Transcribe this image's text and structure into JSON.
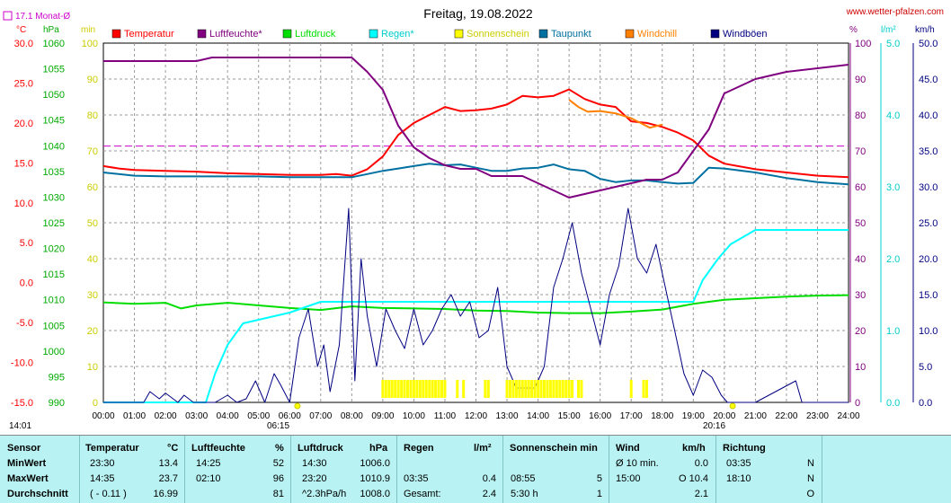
{
  "chart_data": {
    "type": "line",
    "title": "Freitag, 19.08.2022",
    "source": "www.wetter-pfalzen.com",
    "monthly_avg_label": "17.1 Monat-Ø",
    "monthly_avg_value": 17.1,
    "legend": [
      {
        "name": "Temperatur",
        "color": "#ff0000"
      },
      {
        "name": "Luftfeuchte*",
        "color": "#800080"
      },
      {
        "name": "Luftdruck",
        "color": "#00dd00"
      },
      {
        "name": "Regen*",
        "color": "#00ffff"
      },
      {
        "name": "Sonnenschein",
        "color": "#ffff00"
      },
      {
        "name": "Taupunkt",
        "color": "#0070a0"
      },
      {
        "name": "Windchill",
        "color": "#ff8000"
      },
      {
        "name": "Windböen",
        "color": "#000080"
      }
    ],
    "axes": {
      "temp": {
        "unit": "°C",
        "min": -15,
        "max": 30,
        "ticks": [
          "30.0",
          "25.0",
          "20.0",
          "15.0",
          "10.0",
          "5.0",
          "0.0",
          "-5.0",
          "-10.0",
          "-15.0"
        ]
      },
      "pressure": {
        "unit": "hPa",
        "min": 990,
        "max": 1060,
        "ticks": [
          "1060",
          "1055",
          "1050",
          "1045",
          "1040",
          "1035",
          "1030",
          "1025",
          "1020",
          "1015",
          "1010",
          "1005",
          "1000",
          "995",
          "990"
        ]
      },
      "sun": {
        "unit": "min",
        "min": 0,
        "max": 100,
        "ticks": [
          "100",
          "90",
          "80",
          "70",
          "60",
          "50",
          "40",
          "30",
          "20",
          "10",
          "0"
        ]
      },
      "humidity": {
        "unit": "%",
        "min": 0,
        "max": 100,
        "ticks": [
          "100",
          "90",
          "80",
          "70",
          "60",
          "50",
          "40",
          "30",
          "20",
          "10",
          "0"
        ]
      },
      "rain": {
        "unit": "l/m²",
        "min": 0,
        "max": 5,
        "ticks": [
          "5.0",
          "4.0",
          "3.0",
          "2.0",
          "1.0",
          "0.0"
        ]
      },
      "wind": {
        "unit": "km/h",
        "min": 0,
        "max": 50,
        "ticks": [
          "50.0",
          "45.0",
          "40.0",
          "35.0",
          "30.0",
          "25.0",
          "20.0",
          "15.0",
          "10.0",
          "5.0",
          "0.0"
        ]
      },
      "x_ticks": [
        "00:00",
        "01:00",
        "02:00",
        "03:00",
        "04:00",
        "05:00",
        "06:00",
        "07:00",
        "08:00",
        "09:00",
        "10:00",
        "11:00",
        "12:00",
        "13:00",
        "14:00",
        "15:00",
        "16:00",
        "17:00",
        "18:00",
        "19:00",
        "20:00",
        "21:00",
        "22:00",
        "23:00",
        "24:00"
      ],
      "x_range": [
        0,
        24
      ]
    },
    "sunrise": "06:15",
    "sunset": "20:16",
    "footer_left": "14:01",
    "series": [
      {
        "name": "Temperatur",
        "axis": "temp",
        "x": [
          0,
          0.5,
          1,
          2,
          3,
          4,
          5,
          6,
          7,
          7.5,
          8,
          8.5,
          9,
          9.5,
          10,
          10.5,
          11,
          11.5,
          12,
          12.5,
          13,
          13.5,
          14,
          14.5,
          15,
          15.5,
          16,
          16.5,
          17,
          17.5,
          18,
          18.5,
          19,
          19.5,
          20,
          21,
          22,
          23,
          24
        ],
        "y": [
          14.6,
          14.3,
          14.1,
          14.0,
          13.9,
          13.7,
          13.6,
          13.5,
          13.5,
          13.6,
          13.4,
          14.2,
          15.8,
          18.5,
          20.0,
          21.0,
          22.0,
          21.5,
          21.6,
          21.8,
          22.3,
          23.4,
          23.2,
          23.4,
          24.2,
          23.0,
          22.3,
          22.0,
          20.2,
          20.0,
          19.5,
          18.8,
          17.8,
          15.9,
          14.9,
          14.2,
          13.8,
          13.4,
          13.2
        ]
      },
      {
        "name": "Taupunkt",
        "axis": "temp",
        "x": [
          0,
          1,
          2,
          3,
          4,
          5,
          6,
          7,
          8,
          8.5,
          9,
          9.5,
          10,
          10.5,
          11,
          11.5,
          12,
          12.5,
          13,
          13.5,
          14,
          14.5,
          15,
          15.5,
          16,
          16.5,
          17,
          17.5,
          18,
          18.5,
          19,
          19.5,
          20,
          21,
          22,
          23,
          24
        ],
        "y": [
          13.8,
          13.4,
          13.3,
          13.3,
          13.3,
          13.3,
          13.2,
          13.2,
          13.2,
          13.6,
          14.0,
          14.3,
          14.6,
          14.9,
          14.7,
          14.8,
          14.4,
          14.0,
          14.0,
          14.3,
          14.4,
          14.8,
          14.2,
          14.0,
          13.0,
          12.6,
          12.8,
          12.8,
          12.6,
          12.4,
          12.5,
          14.4,
          14.3,
          13.8,
          13.1,
          12.6,
          12.3
        ]
      },
      {
        "name": "Windchill",
        "axis": "temp",
        "x": [
          15.0,
          15.3,
          15.6,
          16.0,
          16.5,
          17.0,
          17.3,
          17.6,
          18.0
        ],
        "y": [
          22.9,
          22.0,
          21.4,
          21.5,
          21.2,
          20.6,
          20.0,
          19.4,
          19.8
        ]
      },
      {
        "name": "Luftfeuchte*",
        "axis": "humidity",
        "x": [
          0,
          1,
          2,
          3,
          3.5,
          4,
          5,
          6,
          7,
          8,
          8.5,
          9,
          9.5,
          10,
          10.5,
          11,
          11.5,
          12,
          12.5,
          13,
          13.5,
          14,
          14.5,
          15,
          15.5,
          16,
          16.5,
          17,
          17.5,
          18,
          18.5,
          19,
          19.5,
          20,
          20.5,
          21,
          22,
          23,
          24
        ],
        "y": [
          95,
          95,
          95,
          95,
          96,
          96,
          96,
          96,
          96,
          96,
          92,
          87,
          77,
          71,
          68,
          66,
          65,
          65,
          63,
          63,
          63,
          61,
          59,
          57,
          58,
          59,
          60,
          61,
          62,
          62,
          64,
          70,
          76,
          86,
          88,
          90,
          92,
          93,
          94
        ]
      },
      {
        "name": "Luftdruck",
        "axis": "pressure",
        "x": [
          0,
          1,
          2,
          2.5,
          3,
          4,
          5,
          6,
          7,
          8,
          9,
          10,
          11,
          12,
          13,
          14,
          15,
          16,
          17,
          18,
          19,
          20,
          21,
          22,
          23,
          24
        ],
        "y": [
          1009.5,
          1009.2,
          1009.4,
          1008.3,
          1008.9,
          1009.4,
          1008.9,
          1008.4,
          1008.0,
          1008.7,
          1008.4,
          1008.3,
          1008.2,
          1007.9,
          1007.8,
          1007.5,
          1007.4,
          1007.4,
          1007.7,
          1008.1,
          1009.2,
          1010.0,
          1010.3,
          1010.6,
          1010.8,
          1010.9
        ]
      },
      {
        "name": "Regen*",
        "axis": "rain",
        "x": [
          0,
          3.3,
          3.6,
          4.0,
          4.5,
          5.0,
          5.5,
          6.0,
          7.0,
          8.0,
          12.0,
          16.0,
          18.0,
          19.0,
          19.3,
          19.8,
          20.2,
          21.0,
          22.0,
          23.0,
          24.0
        ],
        "y": [
          0,
          0,
          0.4,
          0.8,
          1.1,
          1.15,
          1.2,
          1.25,
          1.4,
          1.4,
          1.4,
          1.4,
          1.4,
          1.4,
          1.7,
          2.0,
          2.2,
          2.4,
          2.4,
          2.4,
          2.4
        ]
      },
      {
        "name": "Windböen",
        "axis": "wind",
        "x": [
          0,
          1.3,
          1.5,
          1.8,
          2.0,
          2.4,
          2.6,
          2.9,
          3.3,
          3.6,
          4.0,
          4.3,
          4.6,
          4.9,
          5.2,
          5.5,
          5.7,
          6.0,
          6.3,
          6.6,
          6.9,
          7.1,
          7.3,
          7.6,
          7.9,
          8.1,
          8.3,
          8.5,
          8.8,
          9.1,
          9.4,
          9.7,
          10.0,
          10.3,
          10.6,
          10.9,
          11.2,
          11.5,
          11.8,
          12.1,
          12.4,
          12.7,
          13.0,
          13.3,
          13.6,
          13.9,
          14.2,
          14.5,
          14.8,
          15.1,
          15.4,
          15.7,
          16.0,
          16.3,
          16.6,
          16.9,
          17.2,
          17.5,
          17.8,
          18.1,
          18.4,
          18.7,
          19.0,
          19.3,
          19.6,
          19.9,
          20.1,
          21.0,
          22.3,
          22.5,
          24.0
        ],
        "y": [
          0,
          0,
          1.5,
          0.5,
          1.3,
          0,
          1.0,
          0,
          0,
          0,
          1.0,
          0,
          0.5,
          3.0,
          0,
          4.0,
          2.5,
          0,
          9.0,
          13.0,
          5.0,
          8.0,
          1.5,
          8.0,
          27.0,
          3.0,
          20.0,
          12.0,
          5.0,
          13.0,
          10.0,
          7.5,
          13.0,
          8.0,
          10.0,
          13.0,
          15.0,
          12.0,
          14.0,
          9.0,
          10.0,
          16.0,
          5.0,
          2.0,
          2.0,
          2.0,
          5.0,
          16.0,
          20.0,
          25.0,
          18.0,
          13.0,
          8.0,
          15.0,
          19.0,
          27.0,
          20.0,
          18.0,
          22.0,
          16.0,
          10.0,
          4.0,
          1.0,
          4.5,
          3.5,
          1.0,
          0,
          0,
          3.0,
          0,
          0
        ]
      },
      {
        "name": "Sonnenschein",
        "axis": "sun",
        "x": [
          9.0,
          9.1,
          9.2,
          9.3,
          9.4,
          9.5,
          9.6,
          9.7,
          9.8,
          9.9,
          10.0,
          10.1,
          10.2,
          10.3,
          10.4,
          10.5,
          10.6,
          10.7,
          10.8,
          10.9,
          11.0,
          11.4,
          11.6,
          12.3,
          12.4,
          13.0,
          13.1,
          13.2,
          13.3,
          13.4,
          13.5,
          13.6,
          13.7,
          13.8,
          13.9,
          14.0,
          14.1,
          14.2,
          14.3,
          14.4,
          14.5,
          14.6,
          14.7,
          14.8,
          14.9,
          15.0,
          15.1,
          15.3,
          15.4,
          17.0,
          17.4,
          17.5
        ],
        "y": [
          5,
          5,
          5,
          5,
          5,
          5,
          5,
          5,
          5,
          5,
          5,
          5,
          5,
          5,
          5,
          5,
          5,
          5,
          5,
          5,
          5,
          5,
          5,
          5,
          5,
          5,
          5,
          5,
          5,
          5,
          5,
          5,
          5,
          5,
          5,
          5,
          5,
          5,
          5,
          5,
          5,
          5,
          5,
          5,
          5,
          5,
          5,
          5,
          5,
          5,
          5,
          5
        ]
      }
    ]
  },
  "table": {
    "headers": {
      "sensor": "Sensor",
      "temp": "Temperatur",
      "temp_unit": "°C",
      "hum": "Luftfeuchte",
      "hum_unit": "%",
      "press": "Luftdruck",
      "press_unit": "hPa",
      "rain": "Regen",
      "rain_unit": "l/m²",
      "sun": "Sonnenschein min",
      "wind": "Wind",
      "wind_unit": "km/h",
      "dir": "Richtung"
    },
    "rows": [
      {
        "label": "MinWert",
        "temp_time": "23:30",
        "temp_val": "13.4",
        "hum_time": "14:25",
        "hum_val": "52",
        "press_time": "14:30",
        "press_val": "1006.0",
        "rain_time": "",
        "rain_val": "",
        "sun_time": "",
        "sun_val": "",
        "wind_label": "Ø 10 min.",
        "wind_val": "0.0",
        "dir_time": "03:35",
        "dir_val": "N"
      },
      {
        "label": "MaxWert",
        "temp_time": "14:35",
        "temp_val": "23.7",
        "hum_time": "02:10",
        "hum_val": "96",
        "press_time": "23:20",
        "press_val": "1010.9",
        "rain_time": "03:35",
        "rain_val": "0.4",
        "sun_time": "08:55",
        "sun_val": "5",
        "wind_label": "15:00",
        "wind_val": "O 10.4",
        "dir_time": "18:10",
        "dir_val": "N"
      },
      {
        "label": "Durchschnitt",
        "temp_time": "( - 0.11 )",
        "temp_val": "16.99",
        "hum_time": "",
        "hum_val": "81",
        "press_time": "^2.3hPa/h",
        "press_val": "1008.0",
        "rain_time": "Gesamt:",
        "rain_val": "2.4",
        "sun_time": "5:30 h",
        "sun_val": "1",
        "wind_label": "",
        "wind_val": "2.1",
        "dir_time": "",
        "dir_val": "O"
      }
    ]
  }
}
